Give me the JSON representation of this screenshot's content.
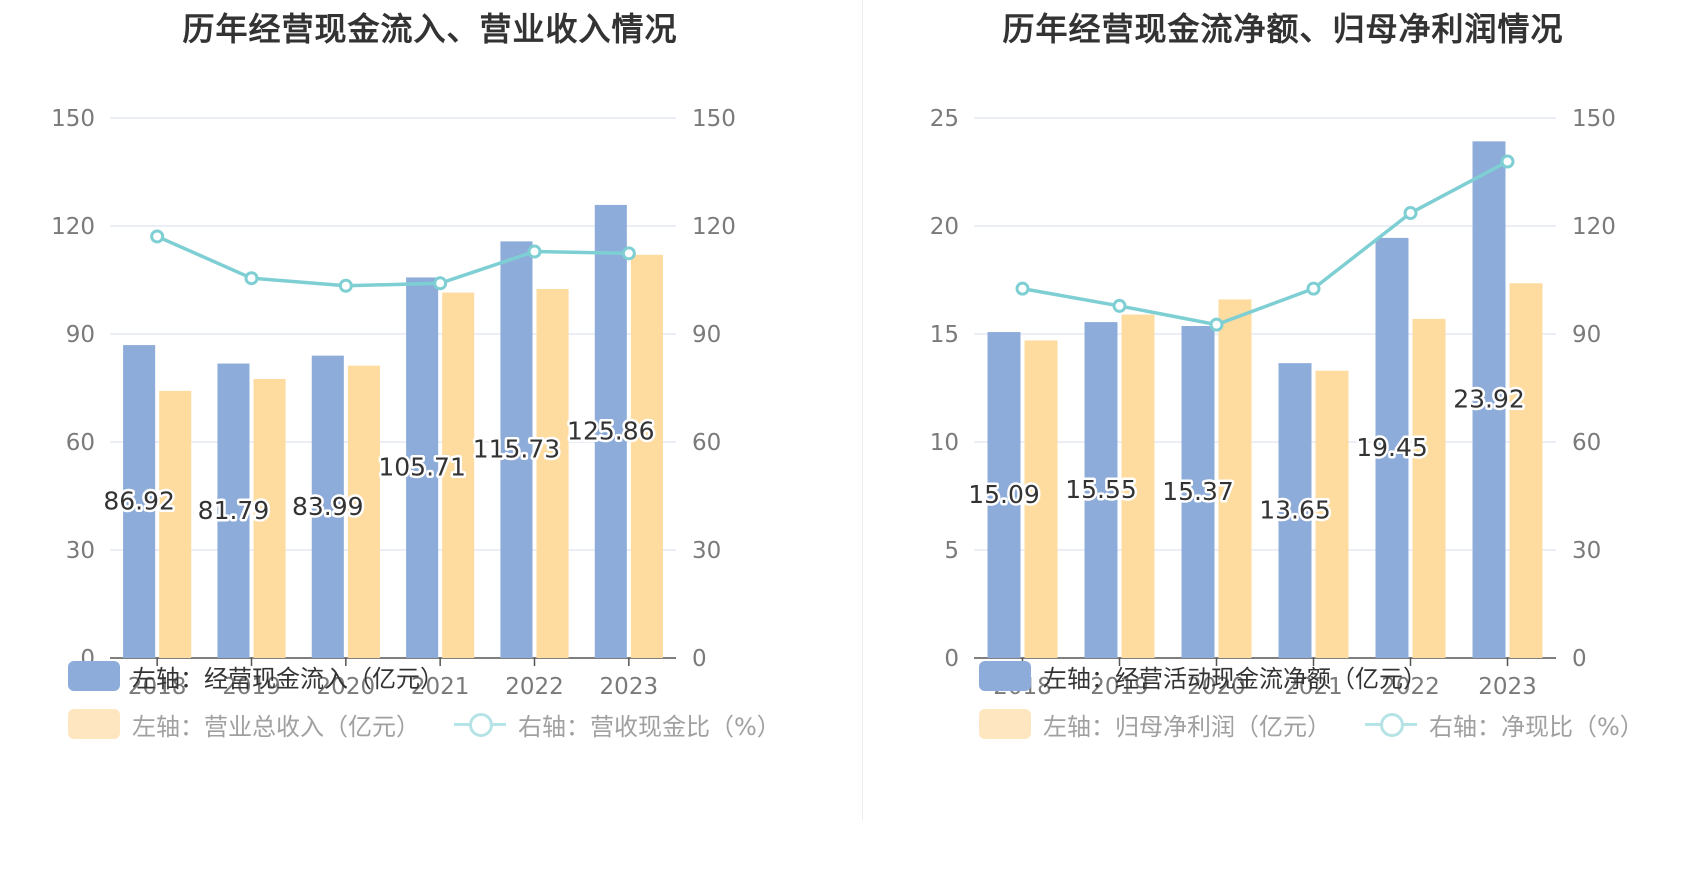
{
  "colors": {
    "bar1": "#8eacd9",
    "bar2": "#fedb9e",
    "line": "#7ecfd4",
    "grid": "#dfe4f2",
    "axis": "#555555",
    "tick": "#7a7a7a"
  },
  "chart_data": [
    {
      "type": "bar",
      "title": "历年经营现金流入、营业收入情况",
      "categories": [
        "2018",
        "2019",
        "2020",
        "2021",
        "2022",
        "2023"
      ],
      "left_axis": {
        "ylim": [
          0,
          150
        ],
        "ticks": [
          "0",
          "30",
          "60",
          "90",
          "120",
          "150"
        ]
      },
      "right_axis": {
        "ylim": [
          0,
          150
        ],
        "ticks": [
          "0",
          "30",
          "60",
          "90",
          "120",
          "150"
        ]
      },
      "series": [
        {
          "name": "左轴：经营现金流入（亿元）",
          "type": "bar",
          "axis": "left",
          "values": [
            86.92,
            81.79,
            83.99,
            105.71,
            115.73,
            125.86
          ],
          "labels": [
            "86.92",
            "81.79",
            "83.99",
            "105.71",
            "115.73",
            "125.86"
          ]
        },
        {
          "name": "左轴：营业总收入（亿元）",
          "type": "bar",
          "axis": "left",
          "values": [
            74.2,
            77.5,
            81.2,
            101.5,
            102.5,
            112.0
          ]
        },
        {
          "name": "右轴：营收现金比（%）",
          "type": "line",
          "axis": "right",
          "values": [
            117.1,
            105.5,
            103.4,
            104.1,
            112.9,
            112.4
          ]
        }
      ],
      "legend": {
        "placement": "bottom-left"
      }
    },
    {
      "type": "bar",
      "title": "历年经营现金流净额、归母净利润情况",
      "categories": [
        "2018",
        "2019",
        "2020",
        "2021",
        "2022",
        "2023"
      ],
      "left_axis": {
        "ylim": [
          0,
          25
        ],
        "ticks": [
          "0",
          "5",
          "10",
          "15",
          "20",
          "25"
        ]
      },
      "right_axis": {
        "ylim": [
          0,
          150
        ],
        "ticks": [
          "0",
          "30",
          "60",
          "90",
          "120",
          "150"
        ]
      },
      "series": [
        {
          "name": "左轴：经营活动现金流净额（亿元）",
          "type": "bar",
          "axis": "left",
          "values": [
            15.09,
            15.55,
            15.37,
            13.65,
            19.45,
            23.92
          ],
          "labels": [
            "15.09",
            "15.55",
            "15.37",
            "13.65",
            "19.45",
            "23.92"
          ]
        },
        {
          "name": "左轴：归母净利润（亿元）",
          "type": "bar",
          "axis": "left",
          "values": [
            14.7,
            15.9,
            16.6,
            13.3,
            15.7,
            17.35
          ]
        },
        {
          "name": "右轴：净现比（%）",
          "type": "line",
          "axis": "right",
          "values": [
            102.6,
            97.8,
            92.6,
            102.6,
            123.6,
            137.9
          ]
        }
      ],
      "legend": {
        "placement": "bottom-left"
      }
    }
  ]
}
